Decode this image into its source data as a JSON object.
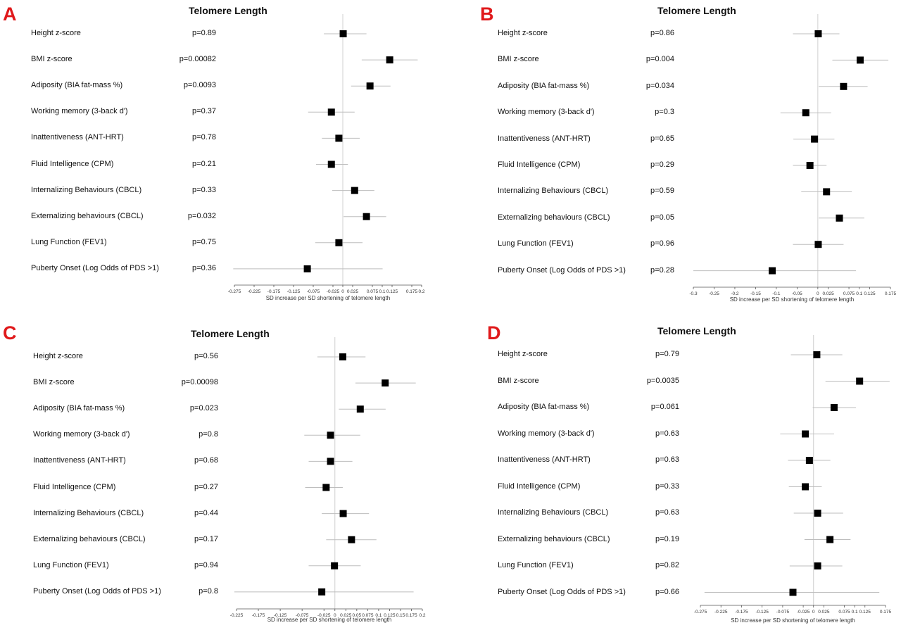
{
  "chart_data": [
    {
      "panel": "A",
      "type": "scatter",
      "title": "Telomere Length",
      "xlabel": "SD increase per SD shortening of telomere length",
      "xlim": [
        -0.275,
        0.2
      ],
      "xticks": [
        "-0.275",
        "-0.225",
        "-0.175",
        "-0.125",
        "-0.075",
        "-0.025",
        "0",
        "0.025",
        "0.075",
        "0.1",
        "0.125",
        "0.175",
        "0.2"
      ],
      "xtick_values": [
        -0.275,
        -0.225,
        -0.175,
        -0.125,
        -0.075,
        -0.025,
        0,
        0.025,
        0.075,
        0.1,
        0.125,
        0.175,
        0.2
      ],
      "rows": [
        {
          "label": "Height z-score",
          "p": "p=0.89",
          "est": 0.001,
          "lo": -0.048,
          "hi": 0.06
        },
        {
          "label": "BMI z-score",
          "p": "p=0.00082",
          "est": 0.119,
          "lo": 0.048,
          "hi": 0.19
        },
        {
          "label": "Adiposity (BIA fat-mass %)",
          "p": "p=0.0093",
          "est": 0.069,
          "lo": 0.021,
          "hi": 0.121
        },
        {
          "label": "Working memory (3-back d')",
          "p": "p=0.37",
          "est": -0.029,
          "lo": -0.088,
          "hi": 0.03
        },
        {
          "label": "Inattentiveness (ANT-HRT)",
          "p": "p=0.78",
          "est": -0.01,
          "lo": -0.053,
          "hi": 0.043
        },
        {
          "label": "Fluid Intelligence (CPM)",
          "p": "p=0.21",
          "est": -0.029,
          "lo": -0.068,
          "hi": 0.013
        },
        {
          "label": "Internalizing Behaviours (CBCL)",
          "p": "p=0.33",
          "est": 0.03,
          "lo": -0.027,
          "hi": 0.08
        },
        {
          "label": "Externalizing behaviours (CBCL)",
          "p": "p=0.032",
          "est": 0.06,
          "lo": 0.002,
          "hi": 0.11
        },
        {
          "label": "Lung Function (FEV1)",
          "p": "p=0.75",
          "est": -0.01,
          "lo": -0.07,
          "hi": 0.05
        },
        {
          "label": "Puberty Onset (Log Odds of PDS >1)",
          "p": "p=0.36",
          "est": -0.09,
          "lo": -0.278,
          "hi": 0.101
        }
      ]
    },
    {
      "panel": "B",
      "type": "scatter",
      "title": "Telomere Length",
      "xlabel": "SD increase per SD shortening of telomere length",
      "xlim": [
        -0.3,
        0.175
      ],
      "xticks": [
        "-0.3",
        "-0.25",
        "-0.2",
        "-0.15",
        "-0.1",
        "-0.05",
        "0",
        "0.025",
        "0.075",
        "0.1",
        "0.125",
        "0.175"
      ],
      "xtick_values": [
        -0.3,
        -0.25,
        -0.2,
        -0.15,
        -0.1,
        -0.05,
        0,
        0.025,
        0.075,
        0.1,
        0.125,
        0.175
      ],
      "rows": [
        {
          "label": "Height z-score",
          "p": "p=0.86",
          "est": 0.001,
          "lo": -0.06,
          "hi": 0.052
        },
        {
          "label": "BMI z-score",
          "p": "p=0.004",
          "est": 0.102,
          "lo": 0.035,
          "hi": 0.17
        },
        {
          "label": "Adiposity (BIA fat-mass %)",
          "p": "p=0.034",
          "est": 0.062,
          "lo": 0.002,
          "hi": 0.12
        },
        {
          "label": "Working memory (3-back d')",
          "p": "p=0.3",
          "est": -0.029,
          "lo": -0.09,
          "hi": 0.032
        },
        {
          "label": "Inattentiveness (ANT-HRT)",
          "p": "p=0.65",
          "est": -0.008,
          "lo": -0.059,
          "hi": 0.04
        },
        {
          "label": "Fluid Intelligence (CPM)",
          "p": "p=0.29",
          "est": -0.019,
          "lo": -0.06,
          "hi": 0.021
        },
        {
          "label": "Internalizing Behaviours (CBCL)",
          "p": "p=0.59",
          "est": 0.021,
          "lo": -0.04,
          "hi": 0.082
        },
        {
          "label": "Externalizing behaviours (CBCL)",
          "p": "p=0.05",
          "est": 0.052,
          "lo": 0.002,
          "hi": 0.112
        },
        {
          "label": "Lung Function (FEV1)",
          "p": "p=0.96",
          "est": 0.001,
          "lo": -0.06,
          "hi": 0.062
        },
        {
          "label": "Puberty Onset (Log Odds of PDS >1)",
          "p": "p=0.28",
          "est": -0.11,
          "lo": -0.3,
          "hi": 0.092
        }
      ]
    },
    {
      "panel": "C",
      "type": "scatter",
      "title": "Telomere Length",
      "xlabel": "SD increase per SD shortening of telomere length",
      "xlim": [
        -0.225,
        0.2
      ],
      "xticks": [
        "-0.225",
        "-0.175",
        "-0.125",
        "-0.075",
        "-0.025",
        "0",
        "0.025",
        "0.05",
        "0.075",
        "0.1",
        "0.125",
        "0.15",
        "0.175",
        "0.2"
      ],
      "xtick_values": [
        -0.225,
        -0.175,
        -0.125,
        -0.075,
        -0.025,
        0,
        0.025,
        0.05,
        0.075,
        0.1,
        0.125,
        0.15,
        0.175,
        0.2
      ],
      "rows": [
        {
          "label": "Height z-score",
          "p": "p=0.56",
          "est": 0.018,
          "lo": -0.04,
          "hi": 0.07
        },
        {
          "label": "BMI z-score",
          "p": "p=0.00098",
          "est": 0.115,
          "lo": 0.047,
          "hi": 0.185
        },
        {
          "label": "Adiposity (BIA fat-mass %)",
          "p": "p=0.023",
          "est": 0.058,
          "lo": 0.009,
          "hi": 0.116
        },
        {
          "label": "Working memory (3-back d')",
          "p": "p=0.8",
          "est": -0.01,
          "lo": -0.07,
          "hi": 0.058
        },
        {
          "label": "Inattentiveness (ANT-HRT)",
          "p": "p=0.68",
          "est": -0.01,
          "lo": -0.06,
          "hi": 0.04
        },
        {
          "label": "Fluid Intelligence (CPM)",
          "p": "p=0.27",
          "est": -0.02,
          "lo": -0.068,
          "hi": 0.018
        },
        {
          "label": "Internalizing Behaviours (CBCL)",
          "p": "p=0.44",
          "est": 0.019,
          "lo": -0.03,
          "hi": 0.078
        },
        {
          "label": "Externalizing behaviours (CBCL)",
          "p": "p=0.17",
          "est": 0.038,
          "lo": -0.02,
          "hi": 0.095
        },
        {
          "label": "Lung Function (FEV1)",
          "p": "p=0.94",
          "est": -0.001,
          "lo": -0.06,
          "hi": 0.059
        },
        {
          "label": "Puberty Onset (Log Odds of PDS >1)",
          "p": "p=0.8",
          "est": -0.03,
          "lo": -0.23,
          "hi": 0.18
        }
      ]
    },
    {
      "panel": "D",
      "type": "scatter",
      "title": "Telomere Length",
      "xlabel": "SD increase per SD shortening of telomere length",
      "xlim": [
        -0.275,
        0.175
      ],
      "xticks": [
        "-0.275",
        "-0.225",
        "-0.175",
        "-0.125",
        "-0.075",
        "-0.025",
        "0",
        "0.025",
        "0.075",
        "0.1",
        "0.125",
        "0.175"
      ],
      "xtick_values": [
        -0.275,
        -0.225,
        -0.175,
        -0.125,
        -0.075,
        -0.025,
        0,
        0.025,
        0.075,
        0.1,
        0.125,
        0.175
      ],
      "rows": [
        {
          "label": "Height z-score",
          "p": "p=0.79",
          "est": 0.008,
          "lo": -0.055,
          "hi": 0.07
        },
        {
          "label": "BMI z-score",
          "p": "p=0.0035",
          "est": 0.112,
          "lo": 0.029,
          "hi": 0.185
        },
        {
          "label": "Adiposity (BIA fat-mass %)",
          "p": "p=0.061",
          "est": 0.05,
          "lo": -0.002,
          "hi": 0.103
        },
        {
          "label": "Working memory (3-back d')",
          "p": "p=0.63",
          "est": -0.02,
          "lo": -0.081,
          "hi": 0.05
        },
        {
          "label": "Inattentiveness (ANT-HRT)",
          "p": "p=0.63",
          "est": -0.01,
          "lo": -0.062,
          "hi": 0.041
        },
        {
          "label": "Fluid Intelligence (CPM)",
          "p": "p=0.33",
          "est": -0.02,
          "lo": -0.06,
          "hi": 0.02
        },
        {
          "label": "Internalizing Behaviours (CBCL)",
          "p": "p=0.63",
          "est": 0.01,
          "lo": -0.048,
          "hi": 0.072
        },
        {
          "label": "Externalizing behaviours (CBCL)",
          "p": "p=0.19",
          "est": 0.04,
          "lo": -0.022,
          "hi": 0.09
        },
        {
          "label": "Lung Function (FEV1)",
          "p": "p=0.82",
          "est": 0.01,
          "lo": -0.058,
          "hi": 0.07
        },
        {
          "label": "Puberty Onset (Log Odds of PDS >1)",
          "p": "p=0.66",
          "est": -0.05,
          "lo": -0.265,
          "hi": 0.16
        }
      ]
    }
  ]
}
